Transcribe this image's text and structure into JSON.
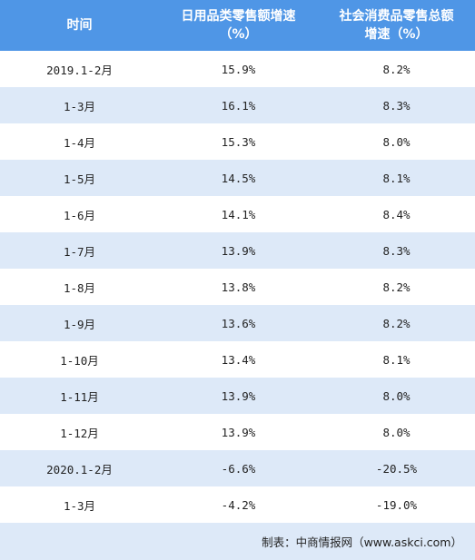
{
  "columns": [
    "时间",
    "日用品类零售额增速",
    "（%）",
    "社会消费品零售总额",
    "增速（%）"
  ],
  "rows": [
    {
      "period": "2019.1-2月",
      "daily_goods": "15.9%",
      "total_retail": "8.2%"
    },
    {
      "period": "1-3月",
      "daily_goods": "16.1%",
      "total_retail": "8.3%"
    },
    {
      "period": "1-4月",
      "daily_goods": "15.3%",
      "total_retail": "8.0%"
    },
    {
      "period": "1-5月",
      "daily_goods": "14.5%",
      "total_retail": "8.1%"
    },
    {
      "period": "1-6月",
      "daily_goods": "14.1%",
      "total_retail": "8.4%"
    },
    {
      "period": "1-7月",
      "daily_goods": "13.9%",
      "total_retail": "8.3%"
    },
    {
      "period": "1-8月",
      "daily_goods": "13.8%",
      "total_retail": "8.2%"
    },
    {
      "period": "1-9月",
      "daily_goods": "13.6%",
      "total_retail": "8.2%"
    },
    {
      "period": "1-10月",
      "daily_goods": "13.4%",
      "total_retail": "8.1%"
    },
    {
      "period": "1-11月",
      "daily_goods": "13.9%",
      "total_retail": "8.0%"
    },
    {
      "period": "1-12月",
      "daily_goods": "13.9%",
      "total_retail": "8.0%"
    },
    {
      "period": "2020.1-2月",
      "daily_goods": "-6.6%",
      "total_retail": "-20.5%"
    },
    {
      "period": "1-3月",
      "daily_goods": "-4.2%",
      "total_retail": "-19.0%"
    }
  ],
  "source": "制表：中商情报网（www.askci.com）",
  "colors": {
    "header_bg": "#4f96e6",
    "alt_row_bg": "#dde9f8",
    "header_text": "#ffffff"
  }
}
